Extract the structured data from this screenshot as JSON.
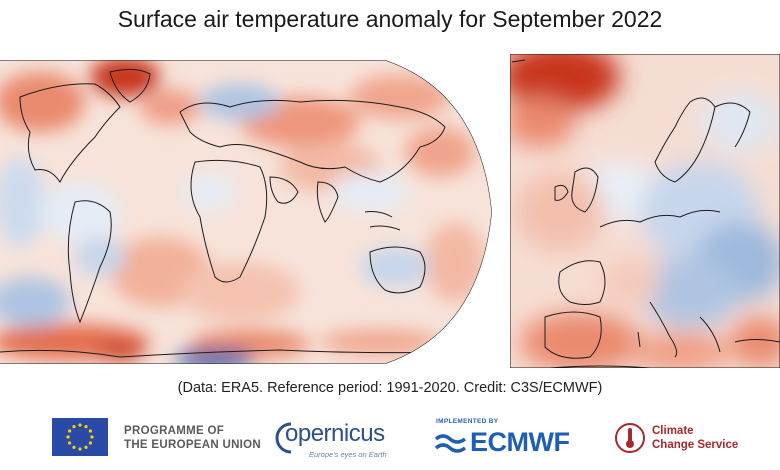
{
  "title": "Surface air temperature anomaly for September 2022",
  "credit": "(Data: ERA5.  Reference period: 1991-2020.  Credit: C3S/ECMWF)",
  "colors": {
    "warm_strong": "#c8361e",
    "warm": "#ea8a6e",
    "warm_light": "#f6cdbd",
    "neutral": "#f7ebe6",
    "cool_light": "#dfe7f2",
    "cool": "#9eb9dc",
    "cool_strong": "#3d68ad"
  },
  "maps": {
    "world": {
      "label": "global-map"
    },
    "europe": {
      "label": "europe-map"
    }
  },
  "logos": {
    "eu_line1": "PROGRAMME OF",
    "eu_line2": "THE EUROPEAN UNION",
    "copernicus_main": "opernicus",
    "copernicus_sub": "Europe's eyes on Earth",
    "ecmwf_implemented": "IMPLEMENTED BY",
    "ecmwf_main": "ECMWF",
    "ccs_line1": "Climate",
    "ccs_line2": "Change Service"
  }
}
